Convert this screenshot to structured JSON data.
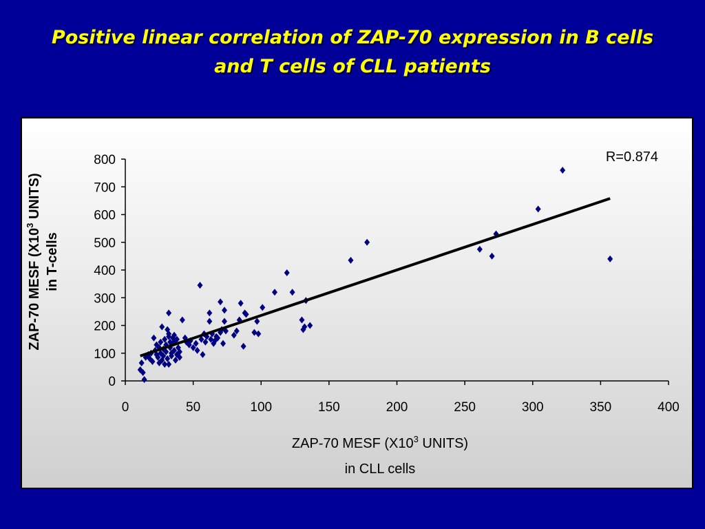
{
  "title": {
    "line1": "Positive linear correlation of ZAP-70  expression in B cells",
    "line2": "and T cells of CLL patients"
  },
  "colors": {
    "background": "#000099",
    "title": "#FFFF00",
    "points": "#000080",
    "trendline": "#000000"
  },
  "chart_data": {
    "type": "scatter",
    "xlabel": {
      "line1_pre": "ZAP-70 MESF (X10",
      "sup": "3",
      "line1_post": " UNITS)",
      "line2": "in CLL cells"
    },
    "ylabel": {
      "line1_pre": "ZAP-70 MESF (X10",
      "sup": "3",
      "line1_post": " UNITS)",
      "line2": "in T-cells"
    },
    "xlim": [
      0,
      400
    ],
    "ylim": [
      0,
      800
    ],
    "x_ticks": [
      0,
      50,
      100,
      150,
      200,
      250,
      300,
      350,
      400
    ],
    "y_ticks": [
      0,
      100,
      200,
      300,
      400,
      500,
      600,
      700,
      800
    ],
    "annotation": "R=0.874",
    "trendline": {
      "x": [
        11,
        357
      ],
      "y": [
        90,
        658
      ]
    },
    "points": [
      {
        "x": 11,
        "y": 40
      },
      {
        "x": 12,
        "y": 65
      },
      {
        "x": 13,
        "y": 30
      },
      {
        "x": 14,
        "y": 5
      },
      {
        "x": 15,
        "y": 85
      },
      {
        "x": 17,
        "y": 95
      },
      {
        "x": 18,
        "y": 80
      },
      {
        "x": 19,
        "y": 100
      },
      {
        "x": 20,
        "y": 70
      },
      {
        "x": 21,
        "y": 155
      },
      {
        "x": 22,
        "y": 110
      },
      {
        "x": 23,
        "y": 95
      },
      {
        "x": 23,
        "y": 130
      },
      {
        "x": 24,
        "y": 85
      },
      {
        "x": 25,
        "y": 120
      },
      {
        "x": 25,
        "y": 65
      },
      {
        "x": 26,
        "y": 140
      },
      {
        "x": 26,
        "y": 100
      },
      {
        "x": 27,
        "y": 195
      },
      {
        "x": 27,
        "y": 75
      },
      {
        "x": 28,
        "y": 115
      },
      {
        "x": 28,
        "y": 90
      },
      {
        "x": 29,
        "y": 60
      },
      {
        "x": 29,
        "y": 150
      },
      {
        "x": 30,
        "y": 130
      },
      {
        "x": 30,
        "y": 105
      },
      {
        "x": 31,
        "y": 185
      },
      {
        "x": 31,
        "y": 80
      },
      {
        "x": 32,
        "y": 170
      },
      {
        "x": 32,
        "y": 160
      },
      {
        "x": 32,
        "y": 245
      },
      {
        "x": 32,
        "y": 60
      },
      {
        "x": 33,
        "y": 120
      },
      {
        "x": 33,
        "y": 140
      },
      {
        "x": 34,
        "y": 100
      },
      {
        "x": 34,
        "y": 90
      },
      {
        "x": 35,
        "y": 155
      },
      {
        "x": 35,
        "y": 135
      },
      {
        "x": 36,
        "y": 165
      },
      {
        "x": 36,
        "y": 110
      },
      {
        "x": 37,
        "y": 75
      },
      {
        "x": 37,
        "y": 145
      },
      {
        "x": 38,
        "y": 150
      },
      {
        "x": 38,
        "y": 95
      },
      {
        "x": 39,
        "y": 120
      },
      {
        "x": 40,
        "y": 85
      },
      {
        "x": 40,
        "y": 105
      },
      {
        "x": 42,
        "y": 220
      },
      {
        "x": 44,
        "y": 155
      },
      {
        "x": 45,
        "y": 140
      },
      {
        "x": 47,
        "y": 130
      },
      {
        "x": 48,
        "y": 145
      },
      {
        "x": 50,
        "y": 120
      },
      {
        "x": 52,
        "y": 135
      },
      {
        "x": 53,
        "y": 110
      },
      {
        "x": 55,
        "y": 345
      },
      {
        "x": 56,
        "y": 150
      },
      {
        "x": 57,
        "y": 95
      },
      {
        "x": 58,
        "y": 170
      },
      {
        "x": 59,
        "y": 140
      },
      {
        "x": 60,
        "y": 160
      },
      {
        "x": 62,
        "y": 245
      },
      {
        "x": 62,
        "y": 215
      },
      {
        "x": 63,
        "y": 150
      },
      {
        "x": 64,
        "y": 170
      },
      {
        "x": 65,
        "y": 135
      },
      {
        "x": 66,
        "y": 145
      },
      {
        "x": 67,
        "y": 160
      },
      {
        "x": 68,
        "y": 155
      },
      {
        "x": 70,
        "y": 285
      },
      {
        "x": 70,
        "y": 175
      },
      {
        "x": 71,
        "y": 185
      },
      {
        "x": 72,
        "y": 135
      },
      {
        "x": 73,
        "y": 215
      },
      {
        "x": 73,
        "y": 255
      },
      {
        "x": 74,
        "y": 180
      },
      {
        "x": 80,
        "y": 165
      },
      {
        "x": 82,
        "y": 180
      },
      {
        "x": 84,
        "y": 220
      },
      {
        "x": 85,
        "y": 280
      },
      {
        "x": 87,
        "y": 125
      },
      {
        "x": 88,
        "y": 245
      },
      {
        "x": 89,
        "y": 240
      },
      {
        "x": 95,
        "y": 175
      },
      {
        "x": 97,
        "y": 215
      },
      {
        "x": 98,
        "y": 170
      },
      {
        "x": 101,
        "y": 265
      },
      {
        "x": 110,
        "y": 320
      },
      {
        "x": 119,
        "y": 390
      },
      {
        "x": 123,
        "y": 320
      },
      {
        "x": 130,
        "y": 220
      },
      {
        "x": 131,
        "y": 185
      },
      {
        "x": 132,
        "y": 195
      },
      {
        "x": 133,
        "y": 290
      },
      {
        "x": 136,
        "y": 200
      },
      {
        "x": 166,
        "y": 435
      },
      {
        "x": 178,
        "y": 500
      },
      {
        "x": 261,
        "y": 475
      },
      {
        "x": 270,
        "y": 450
      },
      {
        "x": 273,
        "y": 530
      },
      {
        "x": 304,
        "y": 620
      },
      {
        "x": 322,
        "y": 760
      },
      {
        "x": 357,
        "y": 440
      }
    ]
  }
}
